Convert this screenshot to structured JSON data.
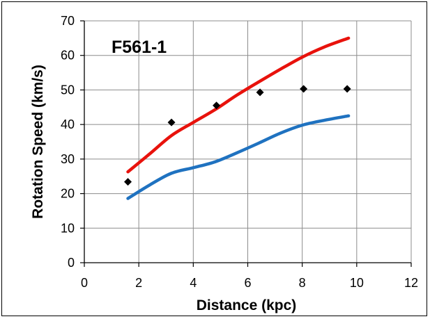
{
  "chart_data": {
    "type": "line",
    "annotation": "F561-1",
    "xlabel": "Distance  (kpc)",
    "ylabel": "Rotation Speed  (km/s)",
    "xlim": [
      0,
      12
    ],
    "ylim": [
      0,
      70
    ],
    "xticks": [
      0,
      2,
      4,
      6,
      8,
      10,
      12
    ],
    "yticks": [
      0,
      10,
      20,
      30,
      40,
      50,
      60,
      70
    ],
    "grid": true,
    "legend": "none",
    "series": [
      {
        "kind": "line",
        "color": "#e8120c",
        "points": [
          [
            1.6,
            26.3
          ],
          [
            2.4,
            31.5
          ],
          [
            3.2,
            36.8
          ],
          [
            4.0,
            40.6
          ],
          [
            4.8,
            44.3
          ],
          [
            5.6,
            48.5
          ],
          [
            6.4,
            52.3
          ],
          [
            7.2,
            56.0
          ],
          [
            8.0,
            59.5
          ],
          [
            8.8,
            62.4
          ],
          [
            9.7,
            65.0
          ]
        ]
      },
      {
        "kind": "line",
        "color": "#1f72c0",
        "points": [
          [
            1.6,
            18.6
          ],
          [
            2.4,
            22.5
          ],
          [
            3.2,
            25.9
          ],
          [
            4.0,
            27.5
          ],
          [
            4.8,
            29.2
          ],
          [
            5.6,
            31.8
          ],
          [
            6.4,
            34.6
          ],
          [
            7.2,
            37.5
          ],
          [
            8.0,
            39.8
          ],
          [
            8.8,
            41.2
          ],
          [
            9.7,
            42.5
          ]
        ]
      },
      {
        "kind": "scatter",
        "marker": "diamond",
        "color": "#000000",
        "points": [
          [
            1.6,
            23.4
          ],
          [
            3.2,
            40.6
          ],
          [
            4.85,
            45.5
          ],
          [
            6.45,
            49.3
          ],
          [
            8.05,
            50.3
          ],
          [
            9.65,
            50.3
          ]
        ]
      }
    ]
  }
}
